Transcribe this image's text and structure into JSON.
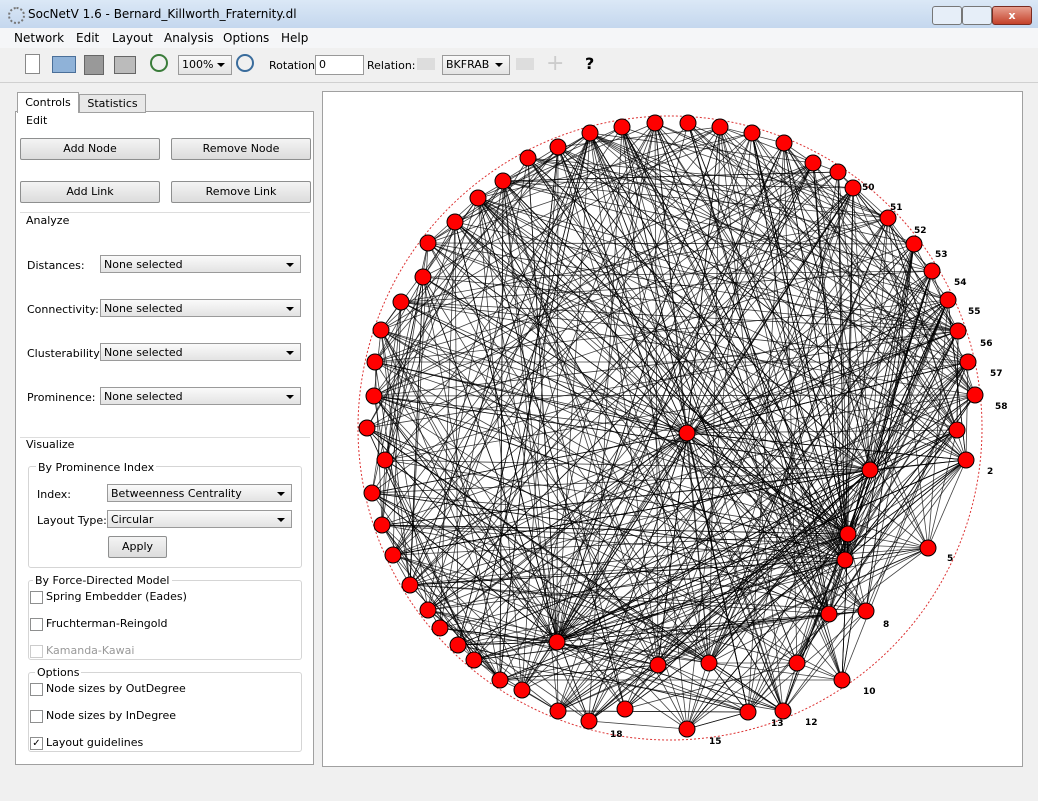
{
  "window": {
    "title": "SocNetV 1.6 - Bernard_Killworth_Fraternity.dl"
  },
  "menu": [
    "Network",
    "Edit",
    "Layout",
    "Analysis",
    "Options",
    "Help"
  ],
  "toolbar": {
    "zoom": "100%",
    "rotation_label": "Rotation:",
    "rotation_value": "0",
    "relation_label": "Relation:",
    "relation_value": "BKFRAB"
  },
  "tabs": [
    "Controls",
    "Statistics"
  ],
  "edit": {
    "title": "Edit",
    "buttons": [
      "Add Node",
      "Remove Node",
      "Add Link",
      "Remove Link"
    ]
  },
  "analyze": {
    "title": "Analyze",
    "rows": [
      {
        "label": "Distances:",
        "value": "None selected"
      },
      {
        "label": "Connectivity:",
        "value": "None selected"
      },
      {
        "label": "Clusterability:",
        "value": "None selected"
      },
      {
        "label": "Prominence:",
        "value": "None selected"
      }
    ]
  },
  "visualize": {
    "title": "Visualize",
    "prominence": {
      "title": "By Prominence Index",
      "index_label": "Index:",
      "index_value": "Betweenness Centrality",
      "layout_label": "Layout Type:",
      "layout_value": "Circular",
      "apply": "Apply"
    },
    "force": {
      "title": "By Force-Directed Model",
      "items": [
        {
          "label": "Spring Embedder (Eades)",
          "checked": false,
          "enabled": true
        },
        {
          "label": "Fruchterman-Reingold",
          "checked": false,
          "enabled": true
        },
        {
          "label": "Kamanda-Kawai",
          "checked": false,
          "enabled": false
        }
      ]
    },
    "options": {
      "title": "Options",
      "items": [
        {
          "label": "Node sizes by OutDegree",
          "checked": false,
          "enabled": true
        },
        {
          "label": "Node sizes by InDegree",
          "checked": false,
          "enabled": true
        },
        {
          "label": "Layout guidelines",
          "checked": true,
          "enabled": true
        }
      ]
    }
  },
  "graph": {
    "node_labels": [
      "50",
      "51",
      "52",
      "53",
      "54",
      "55",
      "56",
      "57",
      "58",
      "2",
      "5",
      "8",
      "10",
      "12",
      "13",
      "15",
      "18"
    ]
  }
}
